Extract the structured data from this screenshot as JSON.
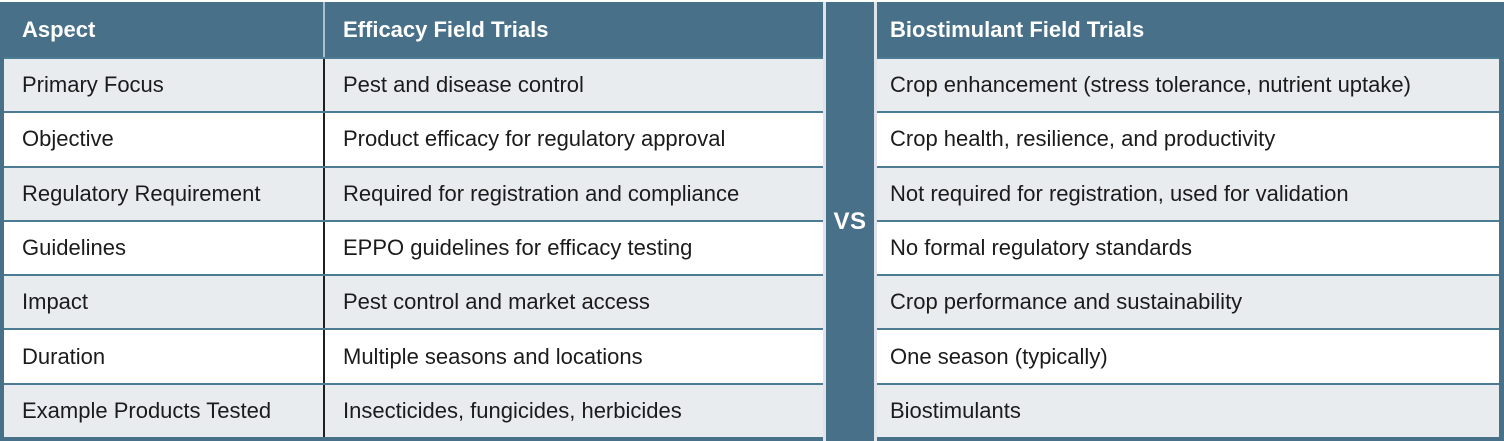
{
  "comparison": {
    "vs_label": "VS",
    "left_table": {
      "headers": [
        "Aspect",
        "Efficacy Field Trials"
      ],
      "rows": [
        [
          "Primary Focus",
          "Pest and disease control"
        ],
        [
          "Objective",
          "Product efficacy for regulatory approval"
        ],
        [
          "Regulatory Requirement",
          "Required for registration and compliance"
        ],
        [
          "Guidelines",
          "EPPO guidelines for efficacy testing"
        ],
        [
          "Impact",
          "Pest control and market access"
        ],
        [
          "Duration",
          "Multiple seasons and locations"
        ],
        [
          "Example Products Tested",
          "Insecticides, fungicides, herbicides"
        ]
      ]
    },
    "right_table": {
      "header": "Biostimulant Field Trials",
      "rows": [
        "Crop enhancement (stress tolerance, nutrient uptake)",
        "Crop health, resilience, and productivity",
        "Not required for registration, used for validation",
        "No formal regulatory standards",
        "Crop performance and sustainability",
        "One season (typically)",
        "Biostimulants"
      ]
    },
    "colors": {
      "header_bg": "#497089",
      "alt_row_bg": "#e9ecef",
      "row_bg": "#ffffff",
      "row_divider": "#4e7b94",
      "column_divider": "#1f1f1f",
      "vs_stripe": "#dee4e9",
      "header_text": "#ffffff",
      "body_text": "#1b1b1b"
    }
  }
}
